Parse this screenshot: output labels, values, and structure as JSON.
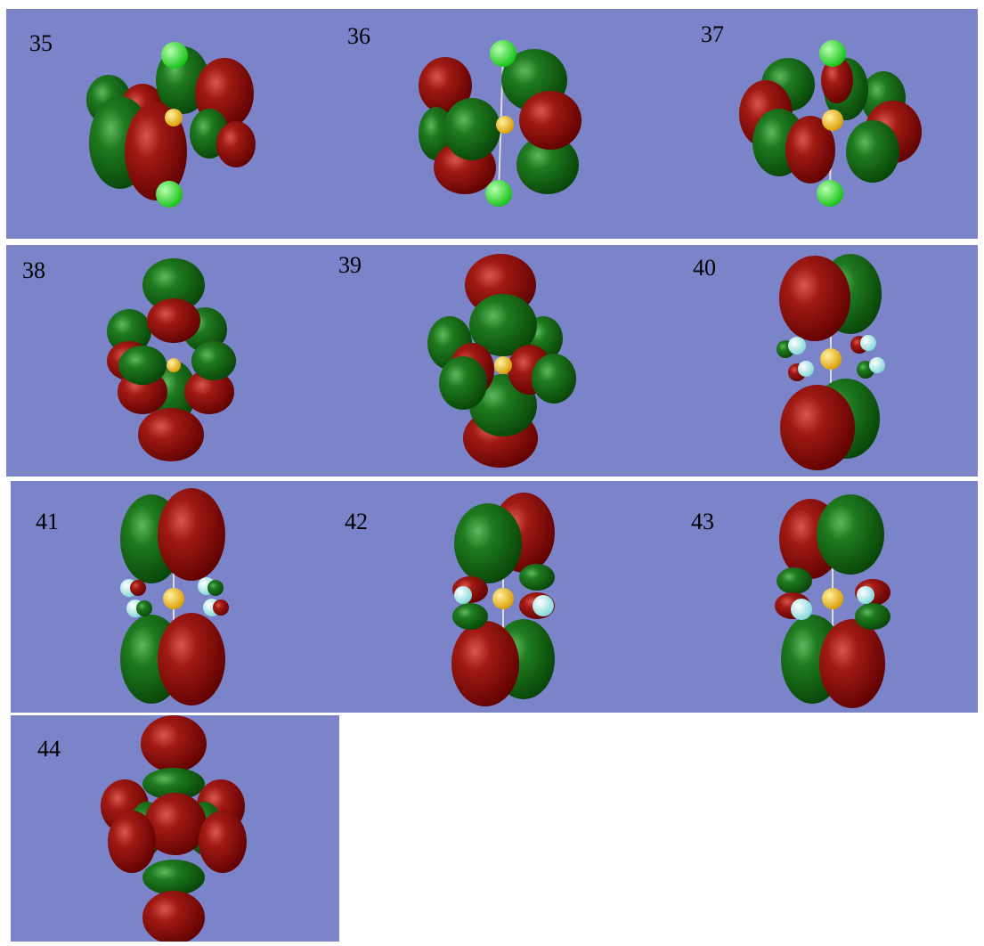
{
  "panels": [
    {
      "label": "35"
    },
    {
      "label": "36"
    },
    {
      "label": "37"
    },
    {
      "label": "38"
    },
    {
      "label": "39"
    },
    {
      "label": "40"
    },
    {
      "label": "41"
    },
    {
      "label": "42"
    },
    {
      "label": "43"
    },
    {
      "label": "44"
    }
  ]
}
